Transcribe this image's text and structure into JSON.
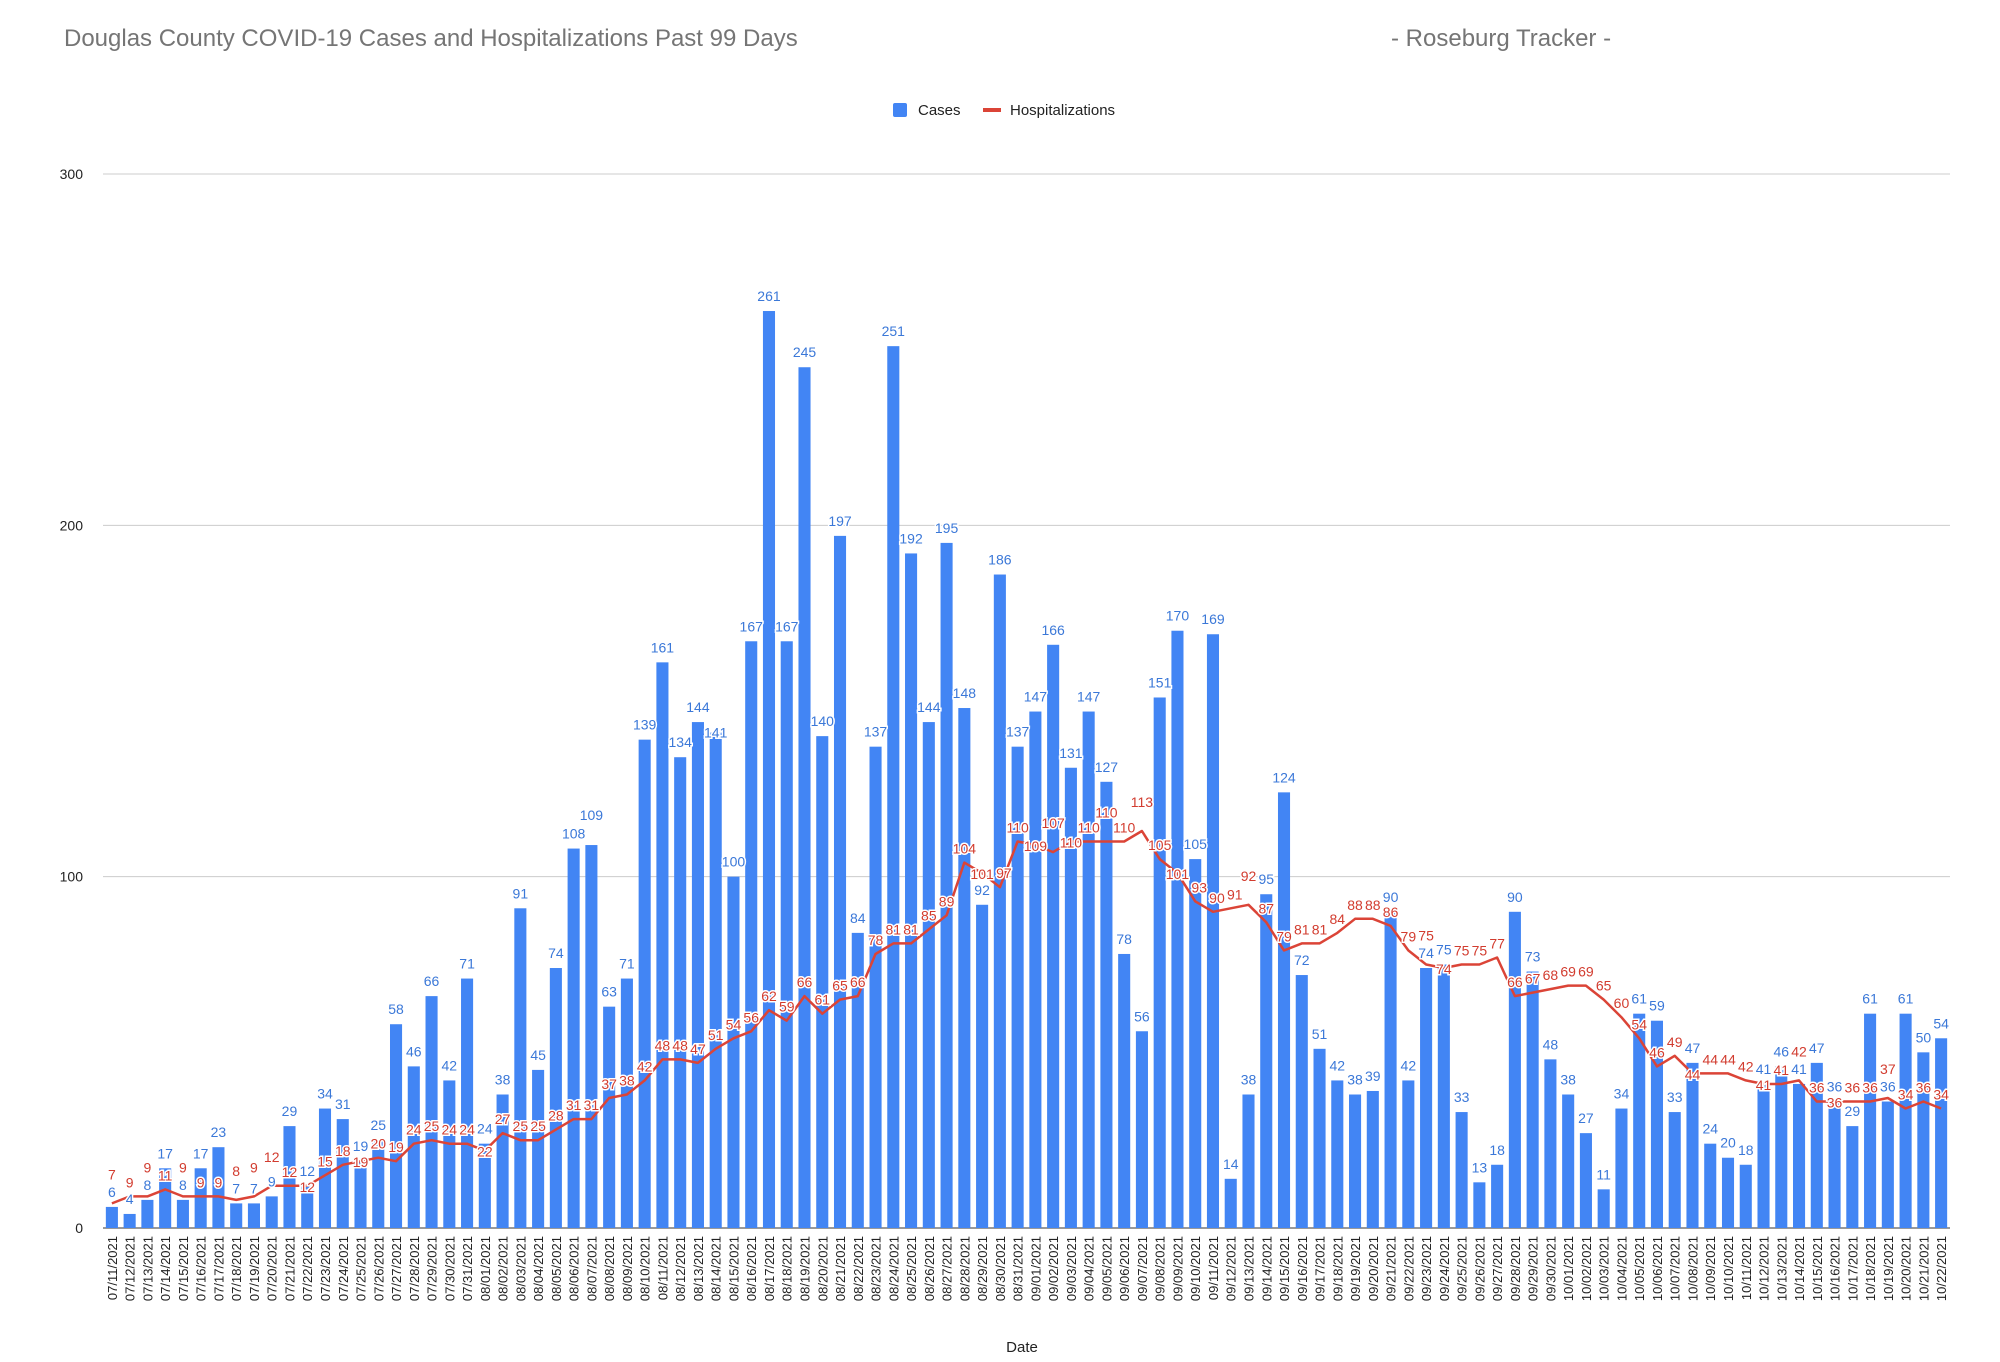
{
  "chart_data": {
    "type": "bar",
    "title": "Douglas County COVID-19 Cases and Hospitalizations Past 99 Days",
    "subtitle": "- Roseburg Tracker -",
    "xlabel": "Date",
    "ylabel": "",
    "ylim": [
      0,
      300
    ],
    "yticks": [
      0,
      100,
      200,
      300
    ],
    "grid": true,
    "legend_position": "top",
    "colors": {
      "Cases": "#4285f4",
      "Hospitalizations": "#db4437"
    },
    "categories": [
      "07/11/2021",
      "07/12/2021",
      "07/13/2021",
      "07/14/2021",
      "07/15/2021",
      "07/16/2021",
      "07/17/2021",
      "07/18/2021",
      "07/19/2021",
      "07/20/2021",
      "07/21/2021",
      "07/22/2021",
      "07/23/2021",
      "07/24/2021",
      "07/25/2021",
      "07/26/2021",
      "07/27/2021",
      "07/28/2021",
      "07/29/2021",
      "07/30/2021",
      "07/31/2021",
      "08/01/2021",
      "08/02/2021",
      "08/03/2021",
      "08/04/2021",
      "08/05/2021",
      "08/06/2021",
      "08/07/2021",
      "08/08/2021",
      "08/09/2021",
      "08/10/2021",
      "08/11/2021",
      "08/12/2021",
      "08/13/2021",
      "08/14/2021",
      "08/15/2021",
      "08/16/2021",
      "08/17/2021",
      "08/18/2021",
      "08/19/2021",
      "08/20/2021",
      "08/21/2021",
      "08/22/2021",
      "08/23/2021",
      "08/24/2021",
      "08/25/2021",
      "08/26/2021",
      "08/27/2021",
      "08/28/2021",
      "08/29/2021",
      "08/30/2021",
      "08/31/2021",
      "09/01/2021",
      "09/02/2021",
      "09/03/2021",
      "09/04/2021",
      "09/05/2021",
      "09/06/2021",
      "09/07/2021",
      "09/08/2021",
      "09/09/2021",
      "09/10/2021",
      "09/11/2021",
      "09/12/2021",
      "09/13/2021",
      "09/14/2021",
      "09/15/2021",
      "09/16/2021",
      "09/17/2021",
      "09/18/2021",
      "09/19/2021",
      "09/20/2021",
      "09/21/2021",
      "09/22/2021",
      "09/23/2021",
      "09/24/2021",
      "09/25/2021",
      "09/26/2021",
      "09/27/2021",
      "09/28/2021",
      "09/29/2021",
      "09/30/2021",
      "10/01/2021",
      "10/02/2021",
      "10/03/2021",
      "10/04/2021",
      "10/05/2021",
      "10/06/2021",
      "10/07/2021",
      "10/08/2021",
      "10/09/2021",
      "10/10/2021",
      "10/11/2021",
      "10/12/2021",
      "10/13/2021",
      "10/14/2021",
      "10/15/2021",
      "10/16/2021",
      "10/17/2021",
      "10/18/2021",
      "10/19/2021",
      "10/20/2021",
      "10/21/2021",
      "10/22/2021"
    ],
    "series": [
      {
        "name": "Cases",
        "type": "bar",
        "values": [
          6,
          4,
          8,
          17,
          8,
          17,
          23,
          7,
          7,
          9,
          29,
          12,
          34,
          31,
          19,
          25,
          58,
          46,
          66,
          42,
          71,
          24,
          38,
          91,
          45,
          74,
          108,
          109,
          63,
          71,
          139,
          161,
          134,
          144,
          141,
          100,
          167,
          261,
          167,
          245,
          140,
          197,
          84,
          137,
          251,
          192,
          144,
          195,
          148,
          92,
          186,
          137,
          147,
          166,
          131,
          147,
          127,
          78,
          56,
          151,
          170,
          105,
          169,
          14,
          38,
          95,
          124,
          72,
          51,
          42,
          38,
          39,
          90,
          42,
          74,
          75,
          33,
          13,
          18,
          90,
          73,
          48,
          38,
          27,
          11,
          34,
          61,
          59,
          33,
          47,
          24,
          20,
          18,
          41,
          46,
          41,
          47,
          36,
          29,
          61,
          36,
          61,
          50,
          54
        ]
      },
      {
        "name": "Hospitalizations",
        "type": "line",
        "values": [
          7,
          9,
          9,
          11,
          9,
          9,
          9,
          8,
          9,
          12,
          12,
          12,
          15,
          18,
          19,
          20,
          19,
          24,
          25,
          24,
          24,
          22,
          27,
          25,
          25,
          28,
          31,
          31,
          37,
          38,
          42,
          48,
          48,
          47,
          51,
          54,
          56,
          62,
          59,
          66,
          61,
          65,
          66,
          78,
          81,
          81,
          85,
          89,
          104,
          101,
          97,
          110,
          109,
          107,
          110,
          110,
          110,
          110,
          113,
          105,
          101,
          93,
          90,
          91,
          92,
          87,
          79,
          81,
          81,
          84,
          88,
          88,
          86,
          79,
          75,
          74,
          75,
          75,
          77,
          66,
          67,
          68,
          69,
          69,
          65,
          60,
          54,
          46,
          49,
          44,
          44,
          44,
          42,
          41,
          41,
          42,
          36,
          36,
          36,
          36,
          37,
          34,
          36,
          34
        ]
      }
    ]
  }
}
